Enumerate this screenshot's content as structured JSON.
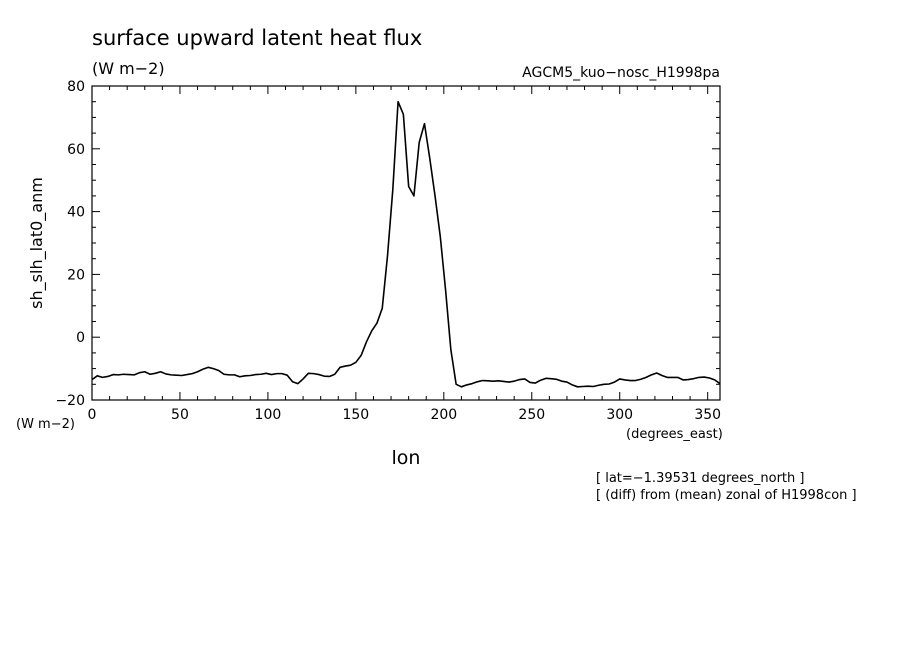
{
  "chart_data": {
    "type": "line",
    "title": "surface upward latent heat flux",
    "units": "(W m−2)",
    "run_name": "AGCM5_kuo−nosc_H1998pa",
    "ylabel": "sh_slh_lat0_anm",
    "yunits": "(W m−2)",
    "xlabel": "lon",
    "xunits": "(degrees_east)",
    "notes": [
      "[ lat=−1.39531 degrees_north ]",
      "[ (diff) from (mean) zonal of H1998con ]"
    ],
    "xlim": [
      0,
      357
    ],
    "ylim": [
      -20,
      80
    ],
    "xticks": [
      0,
      50,
      100,
      150,
      200,
      250,
      300,
      350
    ],
    "yticks": [
      -20,
      0,
      20,
      40,
      60,
      80
    ],
    "xtick_labels": [
      "0",
      "50",
      "100",
      "150",
      "200",
      "250",
      "300",
      "350"
    ],
    "ytick_labels": [
      "−20",
      "0",
      "20",
      "40",
      "60",
      "80"
    ],
    "grid": false,
    "series": [
      {
        "color": "#000000",
        "x": [
          0,
          3,
          6,
          9,
          12,
          15,
          18,
          21,
          24,
          27,
          30,
          33,
          36,
          39,
          42,
          45,
          48,
          51,
          54,
          57,
          60,
          63,
          66,
          69,
          72,
          75,
          78,
          81,
          84,
          87,
          90,
          93,
          96,
          99,
          102,
          105,
          108,
          111,
          114,
          117,
          120,
          123,
          126,
          129,
          132,
          135,
          138,
          141,
          144,
          147,
          150,
          153,
          156,
          159,
          162,
          165,
          168,
          171,
          174,
          177,
          180,
          183,
          186,
          189,
          192,
          195,
          198,
          201,
          204,
          207,
          210,
          213,
          216,
          219,
          222,
          225,
          228,
          231,
          234,
          237,
          240,
          243,
          246,
          249,
          252,
          255,
          258,
          261,
          264,
          267,
          270,
          273,
          276,
          279,
          282,
          285,
          288,
          291,
          294,
          297,
          300,
          303,
          306,
          309,
          312,
          315,
          318,
          321,
          324,
          327,
          330,
          333,
          336,
          339,
          342,
          345,
          348,
          351,
          354,
          357
        ],
        "y": [
          -13.5,
          -12.3,
          -12.8,
          -12.5,
          -11.9,
          -12.0,
          -11.8,
          -11.9,
          -12.0,
          -11.3,
          -11.0,
          -11.8,
          -11.5,
          -11.0,
          -11.7,
          -12.0,
          -12.1,
          -12.2,
          -11.9,
          -11.6,
          -11.0,
          -10.2,
          -9.6,
          -10.0,
          -10.6,
          -11.8,
          -12.0,
          -12.0,
          -12.6,
          -12.3,
          -12.2,
          -11.9,
          -11.8,
          -11.5,
          -11.9,
          -11.6,
          -11.6,
          -12.1,
          -14.2,
          -14.8,
          -13.3,
          -11.5,
          -11.6,
          -11.9,
          -12.4,
          -12.5,
          -11.8,
          -9.6,
          -9.2,
          -8.9,
          -8.0,
          -5.8,
          -1.5,
          2.0,
          4.5,
          9.2,
          26.0,
          47.0,
          75.0,
          71.0,
          48.0,
          45.0,
          62.0,
          68.0,
          57.0,
          45.0,
          32.0,
          15.0,
          -4.0,
          -15.0,
          -15.8,
          -15.2,
          -14.8,
          -14.2,
          -13.8,
          -13.9,
          -14.0,
          -13.9,
          -14.1,
          -14.3,
          -14.0,
          -13.5,
          -13.3,
          -14.4,
          -14.6,
          -13.7,
          -13.1,
          -13.2,
          -13.4,
          -14.0,
          -14.3,
          -15.2,
          -15.8,
          -15.7,
          -15.6,
          -15.7,
          -15.3,
          -15.0,
          -14.9,
          -14.3,
          -13.3,
          -13.6,
          -13.8,
          -13.8,
          -13.4,
          -12.8,
          -12.0,
          -11.4,
          -12.2,
          -12.8,
          -12.8,
          -12.8,
          -13.6,
          -13.5,
          -13.2,
          -12.8,
          -12.7,
          -13.0,
          -13.6,
          -14.8
        ]
      }
    ]
  }
}
